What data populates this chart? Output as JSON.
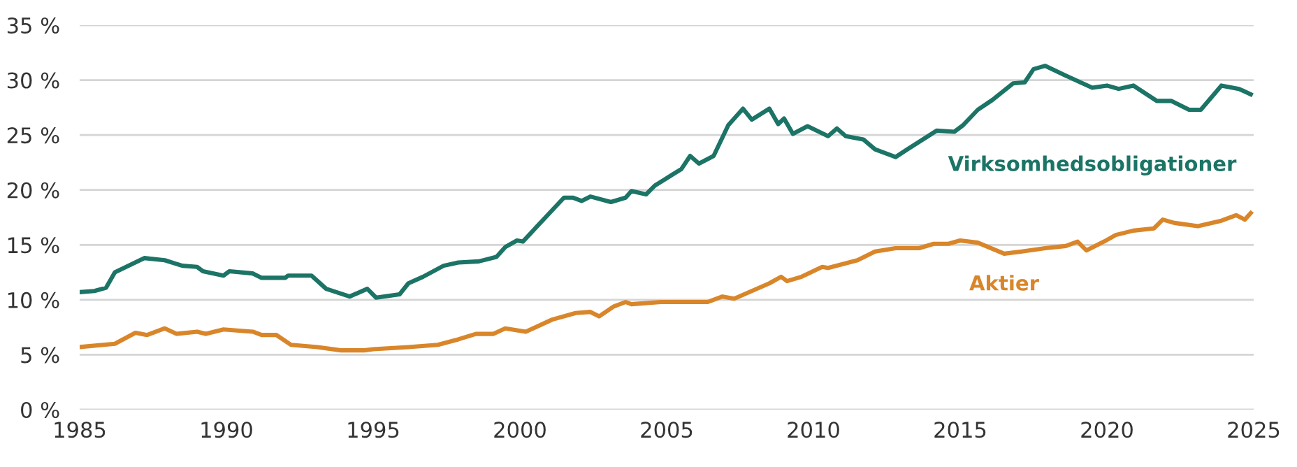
{
  "chart_data": {
    "type": "line",
    "xlim": [
      1985,
      2025
    ],
    "xticks": [
      1985,
      1990,
      1995,
      2000,
      2005,
      2010,
      2015,
      2020,
      2025
    ],
    "ylim": [
      0,
      35
    ],
    "yticks": [
      {
        "value": 0,
        "label": "0 %"
      },
      {
        "value": 5,
        "label": "5 %"
      },
      {
        "value": 10,
        "label": "10 %"
      },
      {
        "value": 15,
        "label": "15 %"
      },
      {
        "value": 20,
        "label": "20 %"
      },
      {
        "value": 25,
        "label": "25 %"
      },
      {
        "value": 30,
        "label": "30 %"
      },
      {
        "value": 35,
        "label": "35 %"
      }
    ],
    "grid": "y",
    "legend": false,
    "marker": "none",
    "line_style": "solid",
    "series": [
      {
        "name": "Virksomhedsobligationer",
        "color": "#1b7466",
        "x": [
          1985.0,
          1985.5,
          1985.9,
          1986.2,
          1987.2,
          1987.9,
          1988.5,
          1989.0,
          1989.2,
          1989.9,
          1990.1,
          1990.9,
          1991.2,
          1992.0,
          1992.1,
          1992.9,
          1993.4,
          1994.2,
          1994.8,
          1995.1,
          1995.9,
          1996.2,
          1996.7,
          1997.4,
          1997.9,
          1998.6,
          1999.2,
          1999.5,
          1999.9,
          2000.1,
          2001.5,
          2001.8,
          2002.1,
          2002.4,
          2003.1,
          2003.6,
          2003.8,
          2004.3,
          2004.6,
          2005.2,
          2005.5,
          2005.8,
          2006.1,
          2006.6,
          2007.1,
          2007.6,
          2007.9,
          2008.5,
          2008.8,
          2009.0,
          2009.3,
          2009.8,
          2010.5,
          2010.8,
          2011.1,
          2011.7,
          2012.1,
          2012.8,
          2013.2,
          2014.2,
          2014.8,
          2015.1,
          2015.6,
          2016.1,
          2016.8,
          2017.2,
          2017.5,
          2017.9,
          2018.6,
          2019.5,
          2020.0,
          2020.4,
          2020.9,
          2021.7,
          2022.2,
          2022.8,
          2023.2,
          2023.9,
          2024.5,
          2024.9
        ],
        "values": [
          10.7,
          10.8,
          11.1,
          12.5,
          13.8,
          13.6,
          13.1,
          13.0,
          12.6,
          12.2,
          12.6,
          12.4,
          12.0,
          12.0,
          12.2,
          12.2,
          11.0,
          10.3,
          11.0,
          10.2,
          10.5,
          11.5,
          12.1,
          13.1,
          13.4,
          13.5,
          13.9,
          14.8,
          15.4,
          15.3,
          19.3,
          19.3,
          19.0,
          19.4,
          18.9,
          19.3,
          19.9,
          19.6,
          20.4,
          21.4,
          21.9,
          23.1,
          22.4,
          23.1,
          25.9,
          27.4,
          26.4,
          27.4,
          26.0,
          26.5,
          25.1,
          25.8,
          24.9,
          25.6,
          24.9,
          24.6,
          23.7,
          23.0,
          23.7,
          25.4,
          25.3,
          25.9,
          27.3,
          28.2,
          29.7,
          29.8,
          31.0,
          31.3,
          30.4,
          29.3,
          29.5,
          29.2,
          29.5,
          28.1,
          28.1,
          27.3,
          27.3,
          29.5,
          29.2,
          28.7
        ]
      },
      {
        "name": "Aktier",
        "color": "#d9862a",
        "x": [
          1985.0,
          1986.2,
          1986.9,
          1987.3,
          1987.9,
          1988.3,
          1989.0,
          1989.3,
          1989.9,
          1990.9,
          1991.2,
          1991.7,
          1992.2,
          1993.1,
          1993.9,
          1994.7,
          1995.0,
          1996.2,
          1997.2,
          1997.9,
          1998.5,
          1999.1,
          1999.5,
          2000.2,
          2001.1,
          2001.9,
          2002.4,
          2002.7,
          2003.2,
          2003.6,
          2003.8,
          2004.8,
          2006.4,
          2006.9,
          2007.3,
          2007.9,
          2008.5,
          2008.9,
          2009.1,
          2009.6,
          2010.3,
          2010.5,
          2011.5,
          2012.1,
          2012.8,
          2013.6,
          2014.1,
          2014.6,
          2015.0,
          2015.6,
          2016.5,
          2017.1,
          2017.9,
          2018.6,
          2019.0,
          2019.3,
          2019.9,
          2020.3,
          2020.9,
          2021.6,
          2021.9,
          2022.3,
          2023.1,
          2023.9,
          2024.4,
          2024.7,
          2024.9
        ],
        "values": [
          5.7,
          6.0,
          7.0,
          6.8,
          7.4,
          6.9,
          7.1,
          6.9,
          7.3,
          7.1,
          6.8,
          6.8,
          5.9,
          5.7,
          5.4,
          5.4,
          5.5,
          5.7,
          5.9,
          6.4,
          6.9,
          6.9,
          7.4,
          7.1,
          8.2,
          8.8,
          8.9,
          8.5,
          9.4,
          9.8,
          9.6,
          9.8,
          9.8,
          10.3,
          10.1,
          10.8,
          11.5,
          12.1,
          11.7,
          12.1,
          13.0,
          12.9,
          13.6,
          14.4,
          14.7,
          14.7,
          15.1,
          15.1,
          15.4,
          15.2,
          14.2,
          14.4,
          14.7,
          14.9,
          15.3,
          14.5,
          15.3,
          15.9,
          16.3,
          16.5,
          17.3,
          17.0,
          16.7,
          17.2,
          17.7,
          17.3,
          17.9
        ]
      }
    ]
  }
}
